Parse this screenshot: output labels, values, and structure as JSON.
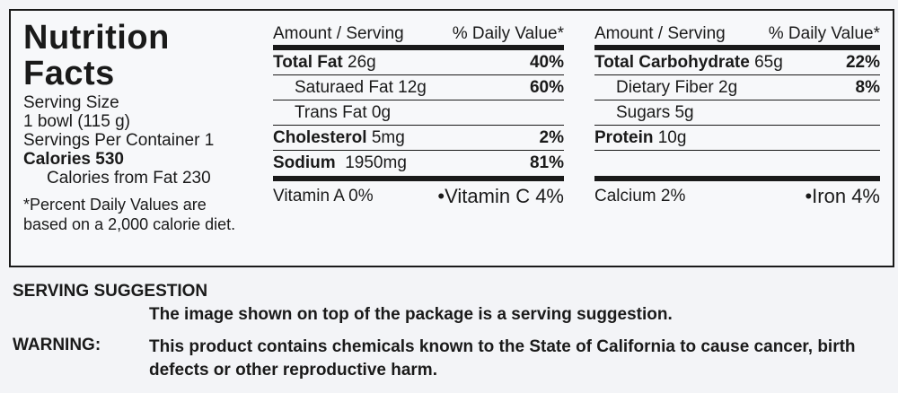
{
  "label": {
    "title": "Nutrition Facts",
    "serving_size_label": "Serving Size",
    "serving_size_value": "1 bowl (115 g)",
    "servings_per_container": "Servings Per Container 1",
    "calories": "Calories 530",
    "calories_from_fat": "Calories from Fat 230",
    "footnote_line1": "*Percent Daily Values are",
    "footnote_line2": "based on a 2,000 calorie diet.",
    "header_amount": "Amount / Serving",
    "header_dv": "% Daily Value*",
    "left_rows": [
      {
        "name": "Total Fat",
        "amount": "26g",
        "dv": "40%"
      },
      {
        "name": "Saturaed Fat",
        "amount": "12g",
        "dv": "60%"
      },
      {
        "name": "Trans Fat",
        "amount": "0g",
        "dv": ""
      },
      {
        "name": "Cholesterol",
        "amount": "5mg",
        "dv": "2%"
      },
      {
        "name": "Sodium",
        "amount": "1950mg",
        "dv": "81%"
      }
    ],
    "right_rows": [
      {
        "name": "Total Carbohydrate",
        "amount": "65g",
        "dv": "22%"
      },
      {
        "name": "Dietary Fiber",
        "amount": "2g",
        "dv": "8%"
      },
      {
        "name": "Sugars",
        "amount": "5g",
        "dv": ""
      },
      {
        "name": "Protein",
        "amount": "10g",
        "dv": ""
      }
    ],
    "vitamin_a": "Vitamin A 0%",
    "vitamin_c": "•Vitamin C 4%",
    "calcium": "Calcium 2%",
    "iron": "•Iron 4%"
  },
  "notices": {
    "serving_title": "SERVING SUGGESTION",
    "serving_text": "The image shown on top of the package is a serving suggestion.",
    "warning_title": "WARNING:",
    "warning_text": "This product contains chemicals known to the State of California to cause cancer, birth defects or other reproductive harm."
  }
}
